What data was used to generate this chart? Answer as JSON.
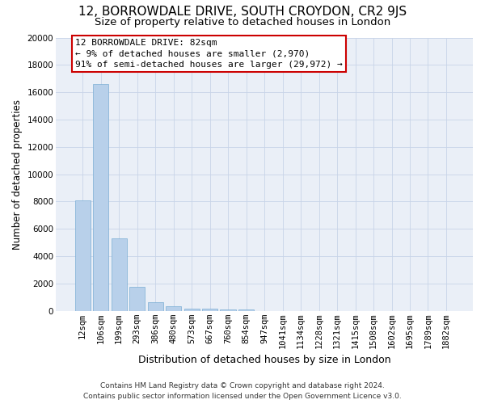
{
  "title_line1": "12, BORROWDALE DRIVE, SOUTH CROYDON, CR2 9JS",
  "title_line2": "Size of property relative to detached houses in London",
  "xlabel": "Distribution of detached houses by size in London",
  "ylabel": "Number of detached properties",
  "categories": [
    "12sqm",
    "106sqm",
    "199sqm",
    "293sqm",
    "386sqm",
    "480sqm",
    "573sqm",
    "667sqm",
    "760sqm",
    "854sqm",
    "947sqm",
    "1041sqm",
    "1134sqm",
    "1228sqm",
    "1321sqm",
    "1415sqm",
    "1508sqm",
    "1602sqm",
    "1695sqm",
    "1789sqm",
    "1882sqm"
  ],
  "values": [
    8100,
    16600,
    5300,
    1750,
    620,
    320,
    180,
    140,
    100,
    120,
    0,
    0,
    0,
    0,
    0,
    0,
    0,
    0,
    0,
    0,
    0
  ],
  "bar_color": "#b8d0ea",
  "bar_edge_color": "#7aadd4",
  "annotation_text_line1": "12 BORROWDALE DRIVE: 82sqm",
  "annotation_text_line2": "← 9% of detached houses are smaller (2,970)",
  "annotation_text_line3": "91% of semi-detached houses are larger (29,972) →",
  "annotation_box_color": "#ffffff",
  "annotation_box_edge_color": "#cc0000",
  "ylim_max": 20000,
  "yticks": [
    0,
    2000,
    4000,
    6000,
    8000,
    10000,
    12000,
    14000,
    16000,
    18000,
    20000
  ],
  "grid_color": "#c8d4e8",
  "bg_color": "#eaeff7",
  "footer_line1": "Contains HM Land Registry data © Crown copyright and database right 2024.",
  "footer_line2": "Contains public sector information licensed under the Open Government Licence v3.0.",
  "title1_fontsize": 11,
  "title2_fontsize": 9.5,
  "xlabel_fontsize": 9,
  "ylabel_fontsize": 8.5,
  "tick_fontsize": 7.5,
  "footer_fontsize": 6.5,
  "annotation_fontsize": 8
}
